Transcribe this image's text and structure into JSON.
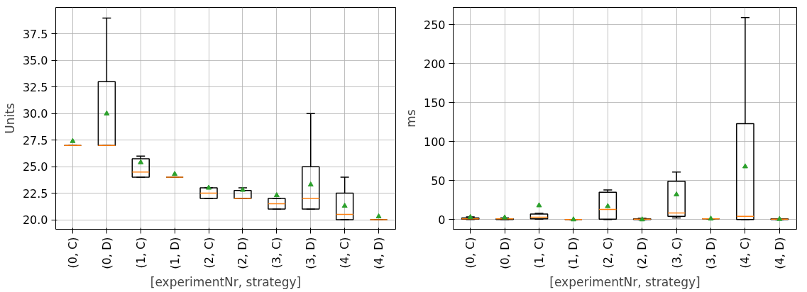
{
  "chart_data": [
    {
      "type": "box",
      "xlabel": "[experimentNr, strategy]",
      "ylabel": "Units",
      "grid": true,
      "marker": "triangle",
      "categories": [
        "(0, C)",
        "(0, D)",
        "(1, C)",
        "(1, D)",
        "(2, C)",
        "(2, D)",
        "(3, C)",
        "(3, D)",
        "(4, C)",
        "(4, D)"
      ],
      "ylim": [
        19.1,
        40.0
      ],
      "yticks": [
        {
          "value": 20,
          "label": "20.0"
        },
        22.5,
        {
          "value": 25,
          "label": "25.0"
        },
        27.5,
        {
          "value": 30,
          "label": "30.0"
        },
        32.5,
        {
          "value": 35,
          "label": "35.0"
        },
        37.5
      ],
      "boxes": [
        {
          "low": 27,
          "q1": 27,
          "median": 27,
          "q3": 27,
          "high": 27,
          "mean": 27.4
        },
        {
          "low": 27,
          "q1": 27,
          "median": 27,
          "q3": 33,
          "high": 39,
          "mean": 30
        },
        {
          "low": 24,
          "q1": 24,
          "median": 24.5,
          "q3": 25.75,
          "high": 26,
          "mean": 25.4
        },
        {
          "low": 24,
          "q1": 24,
          "median": 24,
          "q3": 24,
          "high": 24,
          "mean": 24.3
        },
        {
          "low": 22,
          "q1": 22,
          "median": 22.5,
          "q3": 23,
          "high": 23,
          "mean": 23
        },
        {
          "low": 22,
          "q1": 22,
          "median": 22,
          "q3": 22.75,
          "high": 23,
          "mean": 22.8
        },
        {
          "low": 21,
          "q1": 21,
          "median": 21.5,
          "q3": 22,
          "high": 22,
          "mean": 22.3
        },
        {
          "low": 21,
          "q1": 21,
          "median": 22,
          "q3": 25,
          "high": 30,
          "mean": 23.3
        },
        {
          "low": 20,
          "q1": 20,
          "median": 20.5,
          "q3": 22.5,
          "high": 24,
          "mean": 21.3
        },
        {
          "low": 20,
          "q1": 20,
          "median": 20,
          "q3": 20,
          "high": 20,
          "mean": 20.3
        }
      ]
    },
    {
      "type": "box",
      "xlabel": "[experimentNr, strategy]",
      "ylabel": "ms",
      "grid": true,
      "marker": "triangle",
      "categories": [
        "(0, C)",
        "(0, D)",
        "(1, C)",
        "(1, D)",
        "(2, C)",
        "(2, D)",
        "(3, C)",
        "(3, D)",
        "(4, C)",
        "(4, D)"
      ],
      "ylim": [
        -12.5,
        272
      ],
      "yticks": [
        0,
        50,
        100,
        150,
        200,
        250
      ],
      "boxes": [
        {
          "low": 0,
          "q1": 0.5,
          "median": 1,
          "q3": 2,
          "high": 3.5,
          "mean": 3
        },
        {
          "low": 0,
          "q1": 0,
          "median": 1,
          "q3": 1,
          "high": 2,
          "mean": 2.5
        },
        {
          "low": 0.5,
          "q1": 1,
          "median": 3,
          "q3": 7,
          "high": 8,
          "mean": 18
        },
        {
          "low": 0,
          "q1": 0,
          "median": 0,
          "q3": 0,
          "high": 0,
          "mean": 0
        },
        {
          "low": 0,
          "q1": 0.5,
          "median": 13,
          "q3": 35,
          "high": 38,
          "mean": 17
        },
        {
          "low": 0,
          "q1": 0,
          "median": 0.5,
          "q3": 1,
          "high": 1.5,
          "mean": 0
        },
        {
          "low": 2,
          "q1": 4,
          "median": 8.5,
          "q3": 49,
          "high": 61,
          "mean": 32
        },
        {
          "low": 1,
          "q1": 1,
          "median": 1,
          "q3": 1,
          "high": 1,
          "mean": 1
        },
        {
          "low": 0,
          "q1": 0,
          "median": 4,
          "q3": 123,
          "high": 259,
          "mean": 68
        },
        {
          "low": 0,
          "q1": 0,
          "median": 0.5,
          "q3": 1,
          "high": 1,
          "mean": 0.5
        }
      ]
    }
  ]
}
